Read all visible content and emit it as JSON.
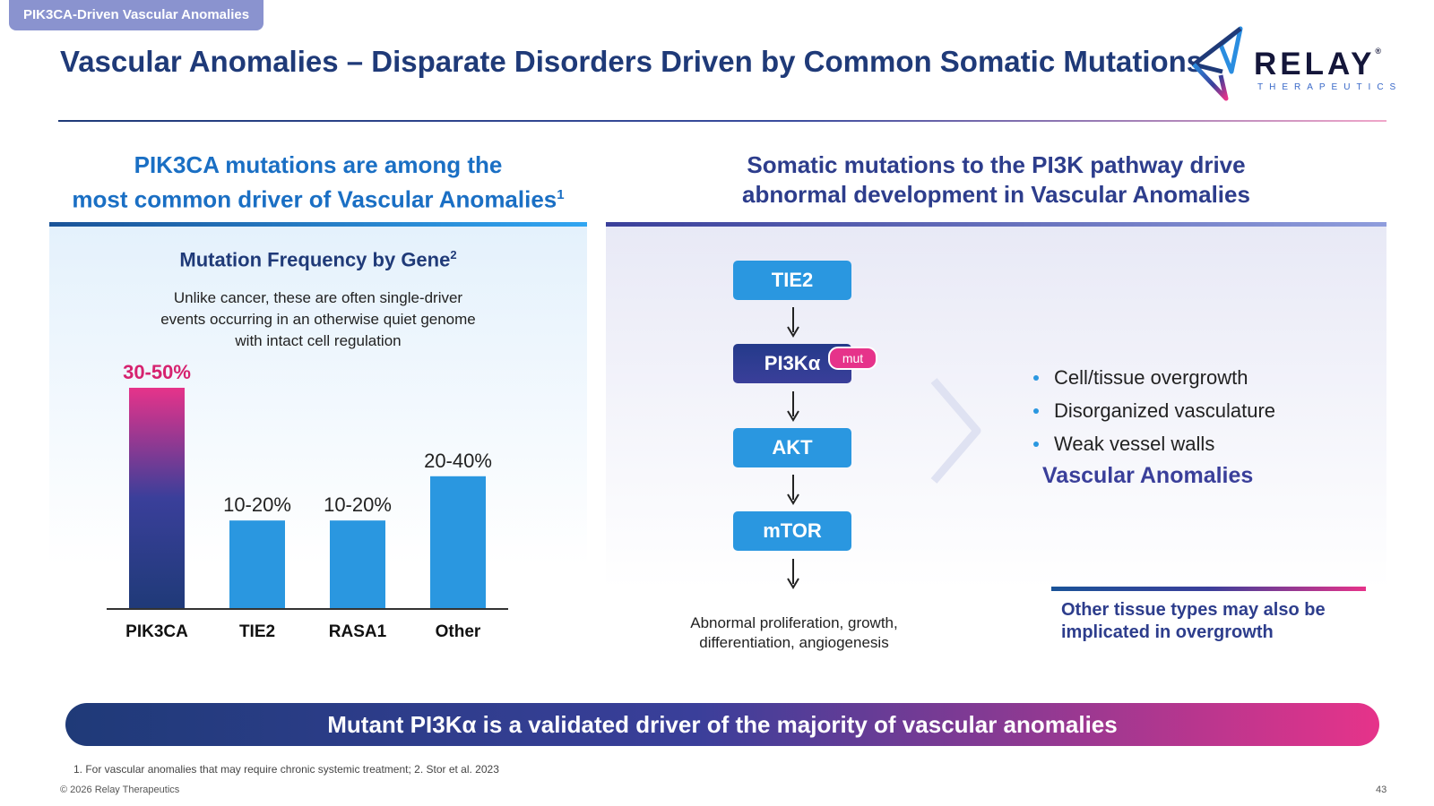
{
  "header": {
    "section_tag": "PIK3CA-Driven Vascular Anomalies",
    "title": "Vascular Anomalies – Disparate Disorders Driven by Common Somatic Mutations",
    "logo": {
      "word": "RELAY",
      "sub": "THERAPEUTICS",
      "mark": "relay-logo-mark"
    }
  },
  "left": {
    "heading_line1": "PIK3CA mutations are among the",
    "heading_line2": "most common driver of Vascular Anomalies",
    "heading_sup": "1"
  },
  "right": {
    "heading_line1": "Somatic mutations to the PI3K pathway drive",
    "heading_line2": "abnormal development in Vascular Anomalies",
    "pathway": [
      "TIE2",
      "PI3Kα",
      "AKT",
      "mTOR"
    ],
    "mut_badge": "mut",
    "pathway_note_line1": "Abnormal proliferation, growth,",
    "pathway_note_line2": "differentiation, angiogenesis",
    "bullets": [
      "Cell/tissue overgrowth",
      "Disorganized vasculature",
      "Weak vessel walls"
    ],
    "outcome_label": "Vascular Anomalies",
    "note_line1": "Other tissue types may also be",
    "note_line2": "implicated in overgrowth"
  },
  "chart_data": {
    "type": "bar",
    "title": "Mutation Frequency by Gene",
    "title_sup": "2",
    "subtitle": [
      "Unlike cancer, these are often single-driver",
      "events occurring in an otherwise quiet genome",
      "with intact cell regulation"
    ],
    "categories": [
      "PIK3CA",
      "TIE2",
      "RASA1",
      "Other"
    ],
    "values": [
      [
        30,
        50
      ],
      [
        10,
        20
      ],
      [
        10,
        20
      ],
      [
        20,
        40
      ]
    ],
    "bar_heights": [
      50,
      20,
      20,
      30
    ],
    "labels": [
      "30-50%",
      "10-20%",
      "10-20%",
      "20-40%"
    ],
    "ylim": [
      0,
      50
    ],
    "colors": {
      "highlight_top": "#e6338a",
      "highlight_bottom": "#1f3a78",
      "bar": "#2a97e0",
      "highlight_label": "#d6226f"
    }
  },
  "banner": "Mutant PI3Kα is a validated driver of the majority of vascular anomalies",
  "footer": {
    "footnote": "1. For vascular anomalies that may require chronic systemic treatment; 2. Stor et al. 2023",
    "copyright": "© 2026 Relay Therapeutics",
    "page": "43"
  }
}
